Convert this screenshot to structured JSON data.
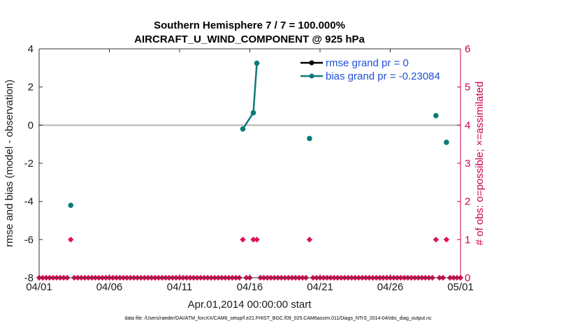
{
  "chart_data": {
    "type": "line",
    "title_line1": "Southern Hemisphere 7 / 7 = 100.000%",
    "title_line2": "AIRCRAFT_U_WIND_COMPONENT @ 925 hPa",
    "xlabel": "Apr.01,2014 00:00:00 start",
    "ylabel_left": "rmse and bias (model - observation)",
    "ylabel_right": "# of obs: o=possible; ×=assimilated",
    "footer": "data file: /Users/raeder/DAI/ATM_forcXX/CAM6_setup/f.e21.FHIST_BGC.f09_025.CAM6assim.011/Diags_NTrS_2014-04/obs_diag_output.nc",
    "xlim": [
      0,
      30
    ],
    "ylim_left": [
      -8,
      4
    ],
    "ylim_right": [
      0,
      6
    ],
    "x_ticks": [
      {
        "value": 0,
        "label": "04/01"
      },
      {
        "value": 5,
        "label": "04/06"
      },
      {
        "value": 10,
        "label": "04/11"
      },
      {
        "value": 15,
        "label": "04/16"
      },
      {
        "value": 20,
        "label": "04/21"
      },
      {
        "value": 25,
        "label": "04/26"
      },
      {
        "value": 30,
        "label": "05/01"
      }
    ],
    "y_ticks_left": [
      {
        "value": 4,
        "label": "4"
      },
      {
        "value": 2,
        "label": "2"
      },
      {
        "value": 0,
        "label": "0"
      },
      {
        "value": -2,
        "label": "-2"
      },
      {
        "value": -4,
        "label": "-4"
      },
      {
        "value": -6,
        "label": "-6"
      },
      {
        "value": -8,
        "label": "-8"
      }
    ],
    "y_ticks_right": [
      {
        "value": 6,
        "label": "6"
      },
      {
        "value": 5,
        "label": "5"
      },
      {
        "value": 4,
        "label": "4"
      },
      {
        "value": 3,
        "label": "3"
      },
      {
        "value": 2,
        "label": "2"
      },
      {
        "value": 1,
        "label": "1"
      },
      {
        "value": 0,
        "label": "0"
      }
    ],
    "zero_line": 0,
    "legend_position": "top-right",
    "series": [
      {
        "name": "rmse grand pr = 0",
        "color": "#000000",
        "axis": "left",
        "points": []
      },
      {
        "name": "bias grand pr = -0.23084",
        "color": "#0b7a78",
        "axis": "left",
        "points": [
          {
            "x": 2.25,
            "y": -4.2
          },
          {
            "x": 14.5,
            "y": -0.2
          },
          {
            "x": 15.25,
            "y": 0.65
          },
          {
            "x": 15.5,
            "y": 3.25
          },
          {
            "x": 19.25,
            "y": -0.7
          },
          {
            "x": 28.25,
            "y": 0.5
          },
          {
            "x": 29.0,
            "y": -0.9
          }
        ],
        "segments": [
          [
            1,
            2
          ],
          [
            2,
            3
          ]
        ]
      }
    ],
    "obs_count_color": "#dd1155",
    "obs_count_step": 0.25,
    "obs_count_nonzero": [
      {
        "x": 2.25,
        "count": 1
      },
      {
        "x": 14.5,
        "count": 1
      },
      {
        "x": 15.25,
        "count": 1
      },
      {
        "x": 15.5,
        "count": 1
      },
      {
        "x": 19.25,
        "count": 1
      },
      {
        "x": 28.25,
        "count": 1
      },
      {
        "x": 29.0,
        "count": 1
      }
    ]
  }
}
